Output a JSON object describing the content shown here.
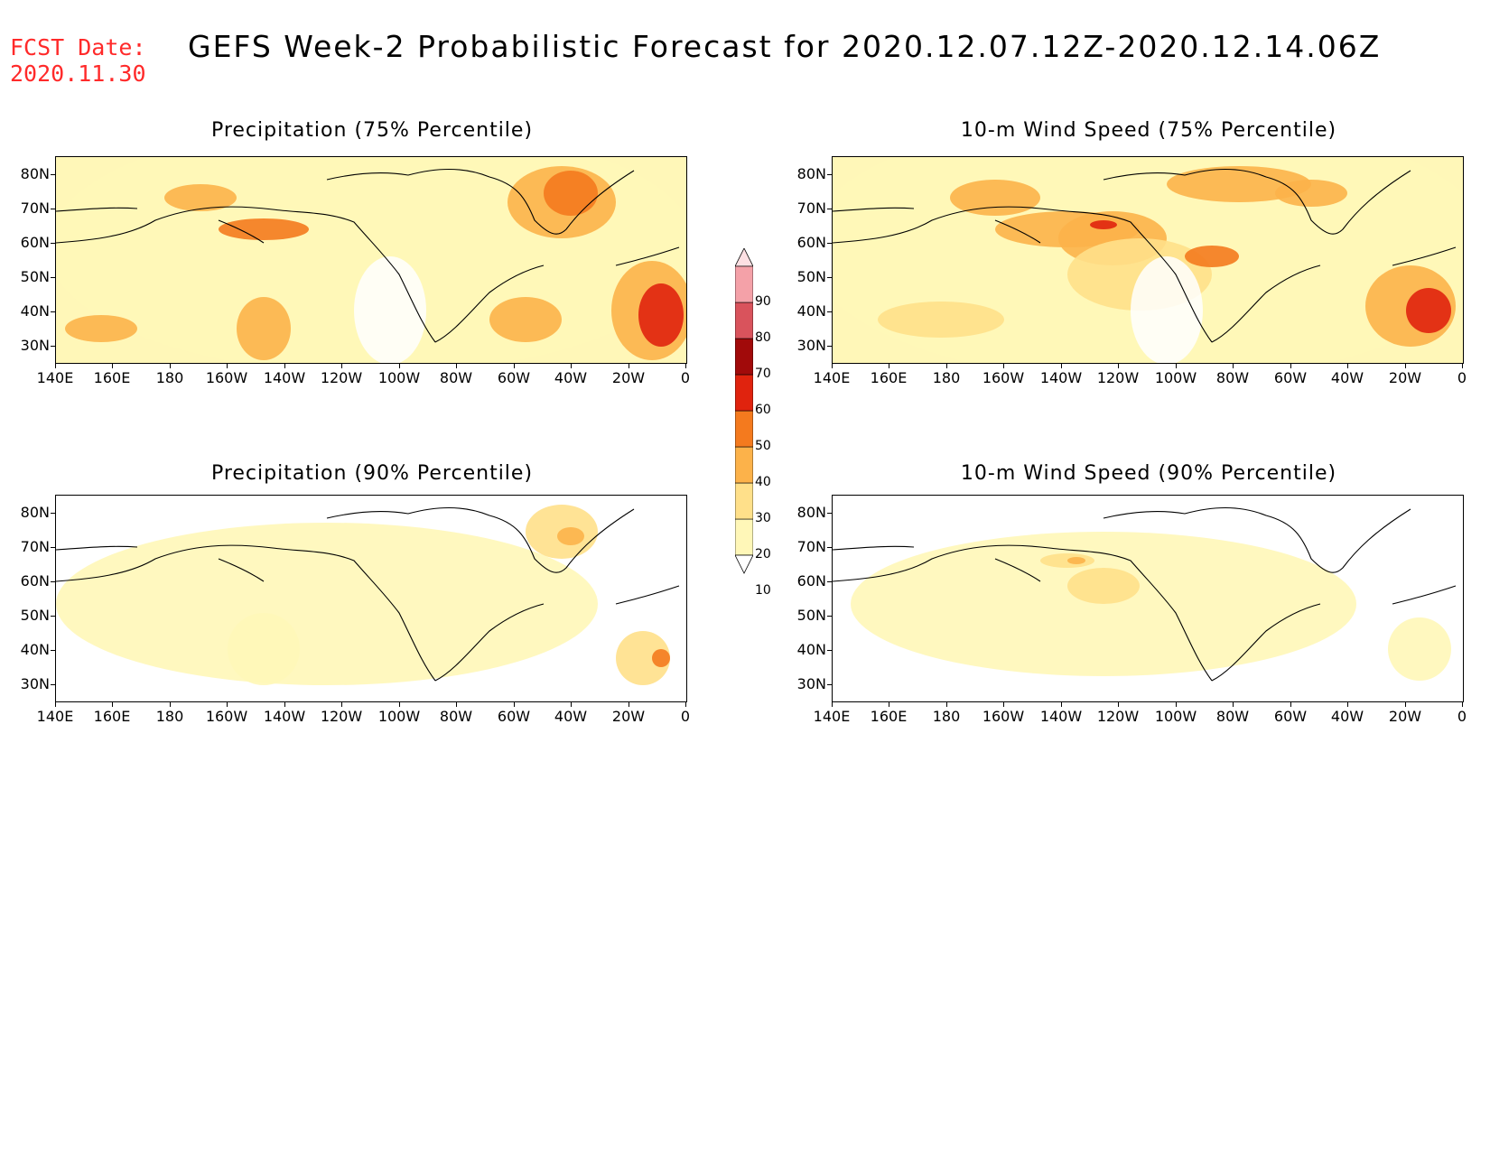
{
  "header": {
    "fcst_line1": "FCST Date:",
    "fcst_line2": "2020.11.30",
    "title": "GEFS Week-2 Probabilistic Forecast for 2020.12.07.12Z-2020.12.14.06Z"
  },
  "panels": [
    {
      "title": "Precipitation (75% Percentile)"
    },
    {
      "title": "10-m Wind Speed (75% Percentile)"
    },
    {
      "title": "Precipitation (90% Percentile)"
    },
    {
      "title": "10-m Wind Speed (90% Percentile)"
    }
  ],
  "axes": {
    "y_labels": [
      "80N",
      "70N",
      "60N",
      "50N",
      "40N",
      "30N"
    ],
    "x_labels": [
      "140E",
      "160E",
      "180",
      "160W",
      "140W",
      "120W",
      "100W",
      "80W",
      "60W",
      "40W",
      "20W",
      "0"
    ]
  },
  "colorbar": {
    "labels": [
      "10",
      "20",
      "30",
      "40",
      "50",
      "60",
      "70",
      "80",
      "90"
    ],
    "colors": [
      "#ffffff",
      "#fff7b8",
      "#ffe08a",
      "#fcb24a",
      "#f47a1e",
      "#e0230e",
      "#a10a0a",
      "#d9535c",
      "#f4a1a8",
      "#fde0e3"
    ]
  }
}
